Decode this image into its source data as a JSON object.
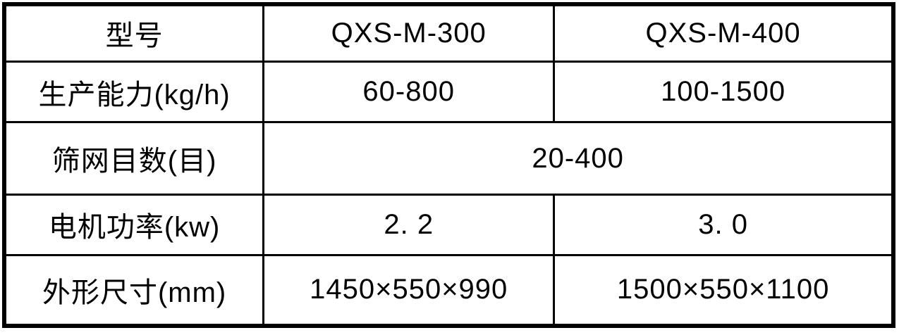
{
  "table": {
    "rows": [
      {
        "label": "型号",
        "col1": "QXS-M-300",
        "col2": "QXS-M-400"
      },
      {
        "label": "生产能力(kg/h)",
        "col1": "60-800",
        "col2": "100-1500"
      },
      {
        "label": "筛网目数(目)",
        "merged": "20-400"
      },
      {
        "label": "电机功率(kw)",
        "col1": "2. 2",
        "col2": "3. 0"
      },
      {
        "label": "外形尺寸(mm)",
        "col1": "1450×550×990",
        "col2": "1500×550×1100"
      }
    ],
    "colors": {
      "border": "#000000",
      "text": "#000000",
      "background": "#ffffff"
    }
  },
  "chart_data": {
    "type": "table",
    "title": "",
    "columns": [
      "型号",
      "QXS-M-300",
      "QXS-M-400"
    ],
    "rows": [
      [
        "生产能力(kg/h)",
        "60-800",
        "100-1500"
      ],
      [
        "筛网目数(目)",
        "20-400",
        "20-400"
      ],
      [
        "电机功率(kw)",
        "2.2",
        "3.0"
      ],
      [
        "外形尺寸(mm)",
        "1450×550×990",
        "1500×550×1100"
      ]
    ]
  }
}
